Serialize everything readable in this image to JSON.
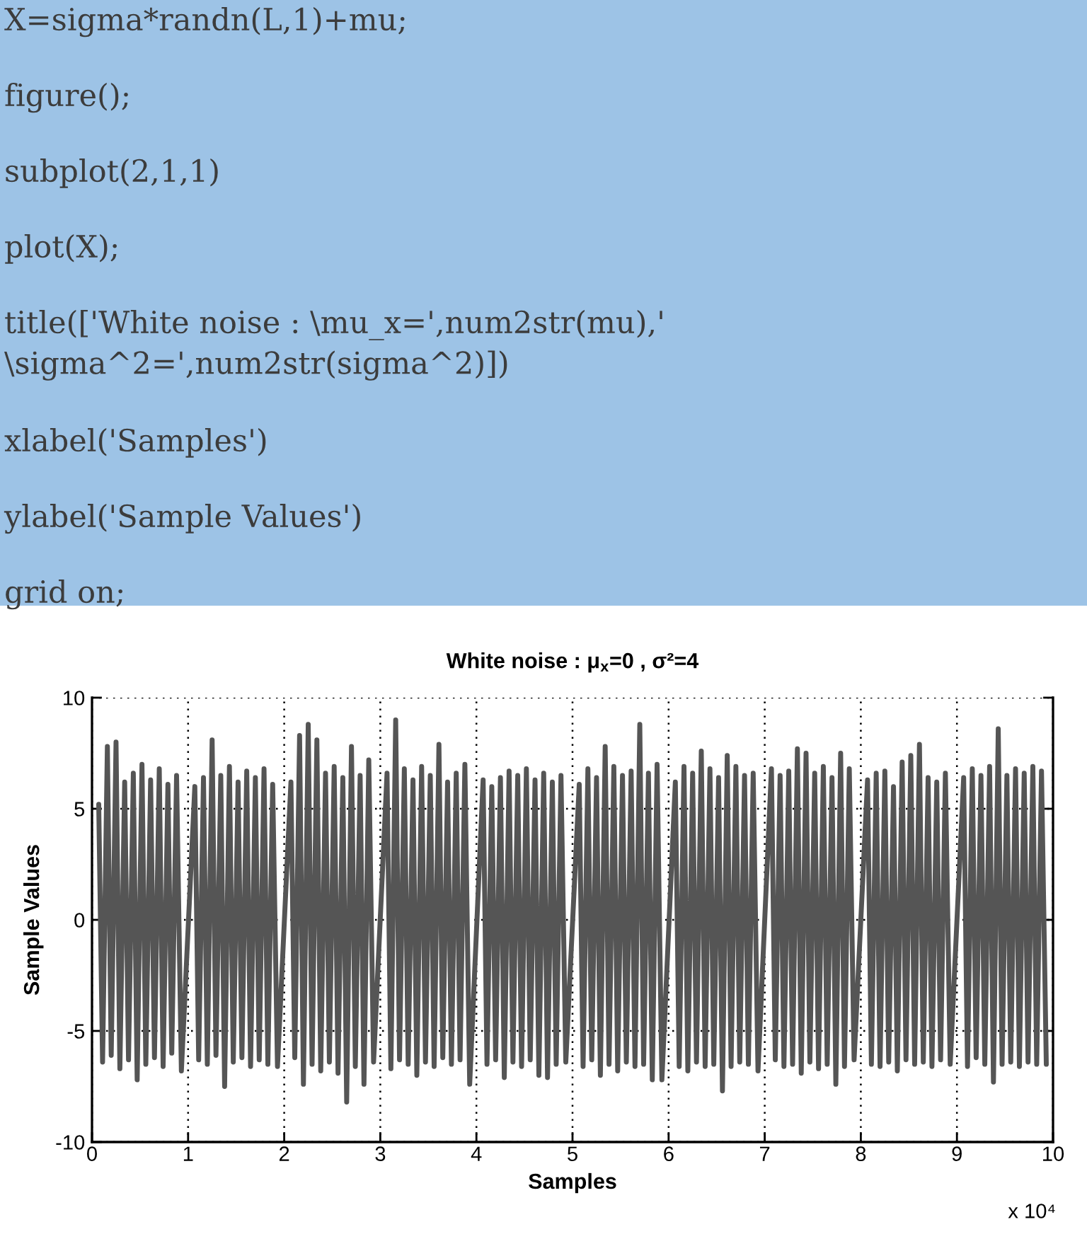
{
  "chart_data": {
    "type": "line",
    "title": "White noise : μ$_{x}$=0 , σ²=4",
    "xlabel": "Samples",
    "ylabel": "Sample Values",
    "annotations": [
      "X=sigma*randn(L,1)+mu;",
      "figure();",
      "subplot(2,1,1)",
      "plot(X);",
      "title(['White noise : \\mu_x=',num2str(mu),' \\sigma^2=',num2str(sigma^2)])",
      "xlabel('Samples')",
      "ylabel('Sample Values')",
      "grid on;",
      "x 10⁴"
    ],
    "x": [
      0.07,
      0.11,
      0.16,
      0.2,
      0.25,
      0.29,
      0.34,
      0.38,
      0.43,
      0.47,
      0.52,
      0.56,
      0.61,
      0.65,
      0.7,
      0.74,
      0.79,
      0.83,
      0.88,
      0.93,
      1.07,
      1.11,
      1.16,
      1.2,
      1.25,
      1.29,
      1.34,
      1.38,
      1.43,
      1.47,
      1.52,
      1.56,
      1.61,
      1.65,
      1.7,
      1.74,
      1.79,
      1.83,
      1.88,
      1.93,
      2.07,
      2.11,
      2.16,
      2.2,
      2.25,
      2.29,
      2.34,
      2.38,
      2.43,
      2.47,
      2.52,
      2.56,
      2.61,
      2.65,
      2.7,
      2.74,
      2.79,
      2.83,
      2.88,
      2.93,
      3.07,
      3.11,
      3.16,
      3.2,
      3.25,
      3.29,
      3.34,
      3.38,
      3.43,
      3.47,
      3.52,
      3.56,
      3.61,
      3.65,
      3.7,
      3.74,
      3.79,
      3.83,
      3.88,
      3.93,
      4.07,
      4.11,
      4.16,
      4.2,
      4.25,
      4.29,
      4.34,
      4.38,
      4.43,
      4.47,
      4.52,
      4.56,
      4.61,
      4.65,
      4.7,
      4.74,
      4.79,
      4.83,
      4.88,
      4.93,
      5.07,
      5.11,
      5.16,
      5.2,
      5.25,
      5.29,
      5.34,
      5.38,
      5.43,
      5.47,
      5.52,
      5.56,
      5.61,
      5.65,
      5.7,
      5.74,
      5.79,
      5.83,
      5.88,
      5.93,
      6.07,
      6.11,
      6.16,
      6.2,
      6.25,
      6.29,
      6.34,
      6.38,
      6.43,
      6.47,
      6.52,
      6.56,
      6.61,
      6.65,
      6.7,
      6.74,
      6.79,
      6.83,
      6.88,
      6.93,
      7.07,
      7.11,
      7.16,
      7.2,
      7.25,
      7.29,
      7.34,
      7.38,
      7.43,
      7.47,
      7.52,
      7.56,
      7.61,
      7.65,
      7.7,
      7.74,
      7.79,
      7.83,
      7.88,
      7.93,
      8.07,
      8.11,
      8.16,
      8.2,
      8.25,
      8.29,
      8.34,
      8.38,
      8.43,
      8.47,
      8.52,
      8.56,
      8.61,
      8.65,
      8.7,
      8.74,
      8.79,
      8.83,
      8.88,
      8.93,
      9.07,
      9.11,
      9.16,
      9.2,
      9.25,
      9.29,
      9.34,
      9.38,
      9.43,
      9.47,
      9.52,
      9.56,
      9.61,
      9.65,
      9.7,
      9.74,
      9.79,
      9.83,
      9.88,
      9.93
    ],
    "series": [
      {
        "color": "#555555",
        "values": [
          5.2,
          -6.4,
          7.8,
          -6.1,
          8.0,
          -6.7,
          6.2,
          -6.3,
          6.6,
          -7.2,
          7.0,
          -6.5,
          6.3,
          -6.2,
          6.8,
          -6.6,
          6.1,
          -6.0,
          6.5,
          -6.8,
          6.0,
          -6.3,
          6.4,
          -6.5,
          8.1,
          -6.1,
          6.5,
          -7.5,
          6.9,
          -6.4,
          6.2,
          -6.2,
          6.7,
          -6.6,
          6.4,
          -6.3,
          6.8,
          -6.5,
          6.1,
          -6.6,
          6.2,
          -6.2,
          8.3,
          -7.4,
          8.8,
          -6.5,
          8.1,
          -6.8,
          6.6,
          -6.4,
          6.9,
          -6.9,
          6.4,
          -8.2,
          7.8,
          -6.6,
          6.5,
          -7.4,
          7.2,
          -6.4,
          6.6,
          -6.7,
          9.0,
          -6.3,
          6.8,
          -6.5,
          6.3,
          -7.0,
          6.9,
          -6.4,
          6.5,
          -6.6,
          7.9,
          -6.2,
          6.2,
          -6.5,
          6.6,
          -6.3,
          7.0,
          -7.4,
          6.3,
          -6.5,
          6.0,
          -6.3,
          6.4,
          -7.1,
          6.7,
          -6.4,
          6.5,
          -6.6,
          6.8,
          -6.3,
          6.3,
          -7.0,
          6.6,
          -7.1,
          6.2,
          -6.5,
          6.5,
          -6.4,
          6.1,
          -6.6,
          6.8,
          -6.3,
          6.4,
          -7.0,
          7.8,
          -6.5,
          6.9,
          -6.8,
          6.5,
          -6.4,
          6.7,
          -6.6,
          8.8,
          -6.5,
          6.6,
          -7.2,
          7.0,
          -7.2,
          6.2,
          -6.6,
          6.9,
          -6.8,
          6.6,
          -6.4,
          7.6,
          -6.6,
          6.8,
          -6.5,
          6.4,
          -7.7,
          7.4,
          -6.6,
          6.9,
          -6.4,
          6.5,
          -6.5,
          6.6,
          -6.8,
          6.8,
          -6.3,
          6.5,
          -6.6,
          6.7,
          -6.5,
          7.7,
          -6.9,
          7.5,
          -6.4,
          6.6,
          -6.7,
          6.9,
          -6.5,
          6.4,
          -7.4,
          7.5,
          -6.6,
          6.8,
          -6.3,
          6.3,
          -6.5,
          6.6,
          -6.6,
          6.7,
          -6.4,
          6.0,
          -6.8,
          7.1,
          -6.3,
          7.4,
          -6.5,
          7.9,
          -6.4,
          6.4,
          -6.6,
          6.2,
          -6.3,
          6.6,
          -6.5,
          6.4,
          -6.6,
          6.8,
          -6.2,
          6.5,
          -6.5,
          6.9,
          -7.3,
          8.6,
          -6.5,
          6.5,
          -6.4,
          6.8,
          -6.6,
          6.6,
          -6.4,
          6.9,
          -6.5,
          6.7,
          -6.5
        ]
      }
    ],
    "xlim": [
      0,
      10
    ],
    "ylim": [
      -10,
      10
    ],
    "xticks": [
      0,
      1,
      2,
      3,
      4,
      5,
      6,
      7,
      8,
      9,
      10
    ],
    "yticks": [
      -10,
      -5,
      0,
      5,
      10
    ],
    "grid": true
  }
}
